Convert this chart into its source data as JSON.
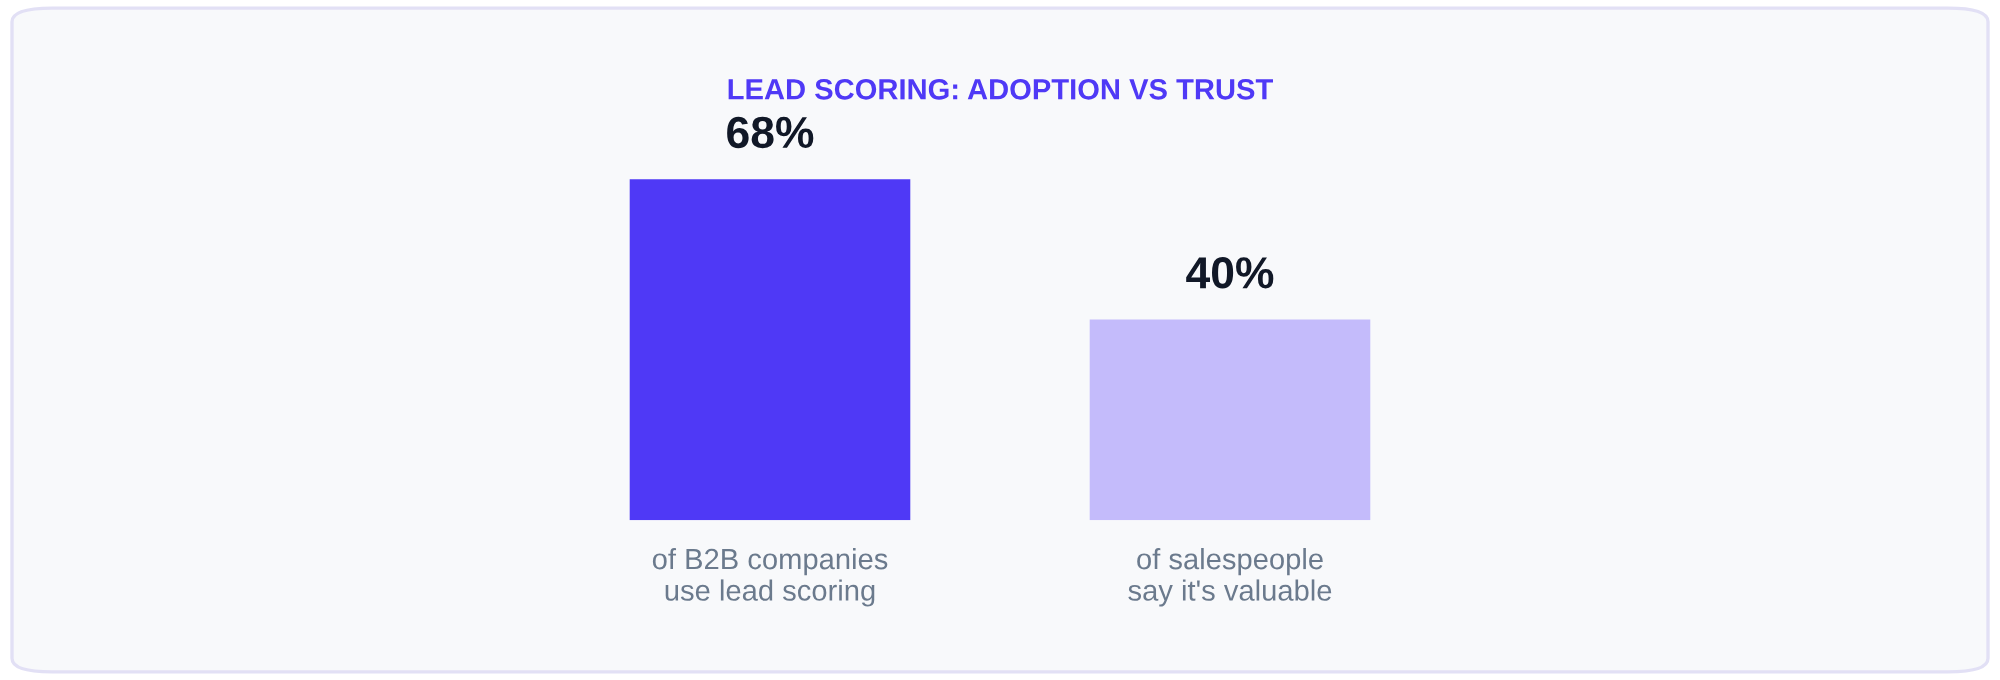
{
  "chart_data": {
    "type": "bar",
    "title": "LEAD SCORING: ADOPTION VS TRUST",
    "categories": [
      "of B2B companies\nuse lead scoring",
      "of salespeople\nsay it's valuable"
    ],
    "values": [
      68,
      40
    ],
    "value_labels": [
      "68%",
      "40%"
    ],
    "colors": [
      "#4f39f6",
      "#c4bbfb"
    ]
  }
}
